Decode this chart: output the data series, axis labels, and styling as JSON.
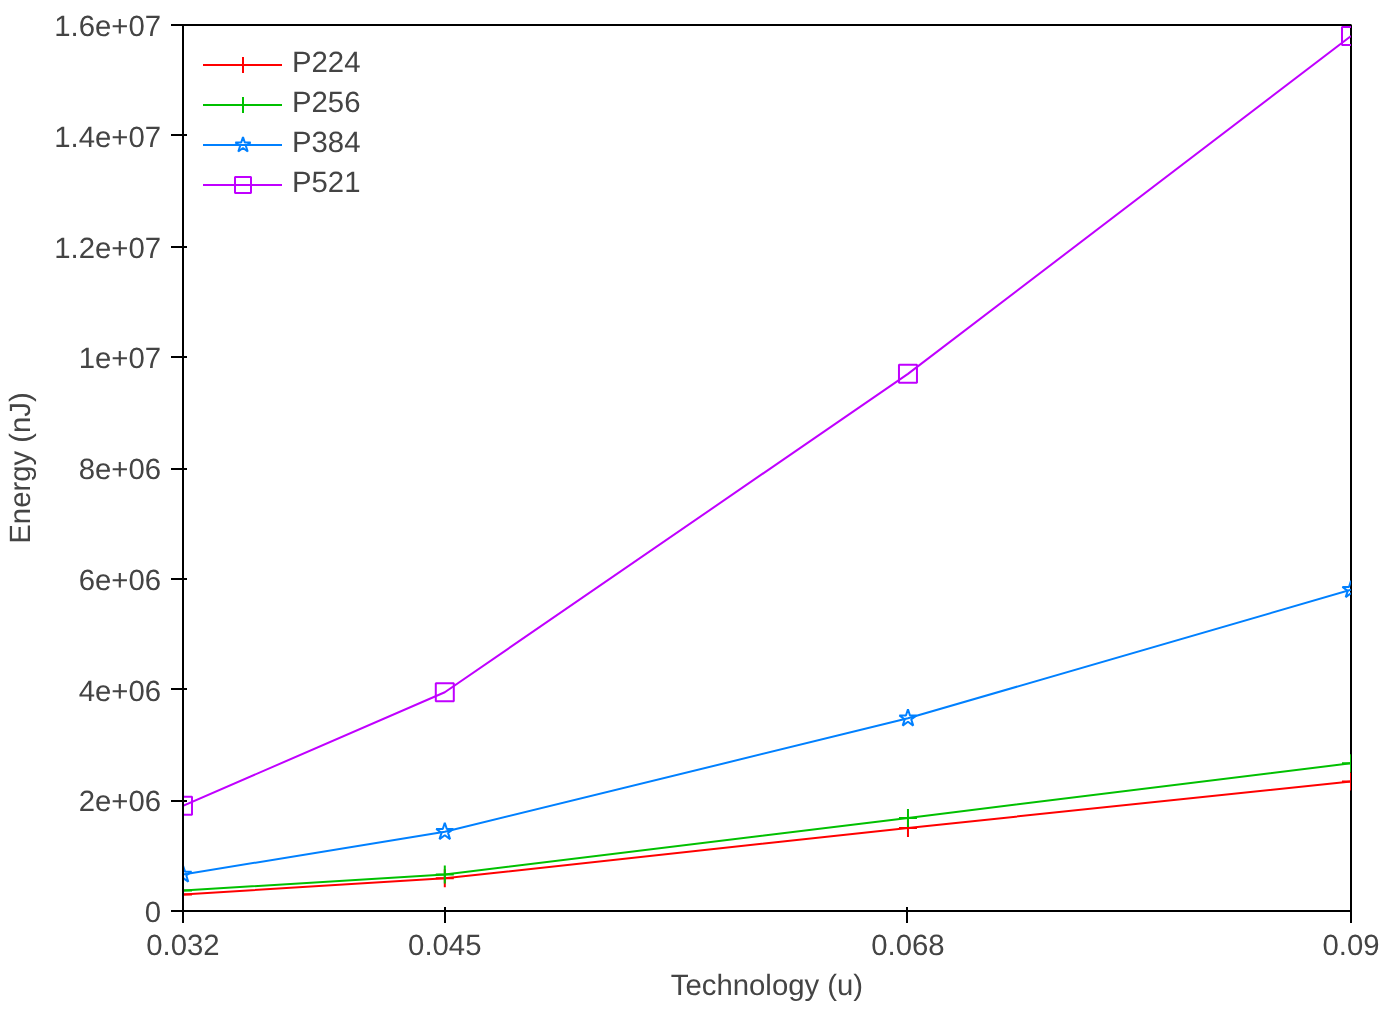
{
  "chart_data": {
    "type": "line",
    "xlabel": "Technology (u)",
    "ylabel": "Energy (nJ)",
    "x": [
      0.032,
      0.045,
      0.068,
      0.09
    ],
    "series": [
      {
        "name": "P224",
        "color": "#ff0000",
        "marker": "cross",
        "values": [
          300000,
          590000,
          1500000,
          2340000
        ]
      },
      {
        "name": "P256",
        "color": "#00c000",
        "marker": "cross",
        "values": [
          370000,
          660000,
          1680000,
          2670000
        ]
      },
      {
        "name": "P384",
        "color": "#0080ff",
        "marker": "star",
        "values": [
          660000,
          1430000,
          3480000,
          5800000
        ]
      },
      {
        "name": "P521",
        "color": "#c000ff",
        "marker": "square",
        "values": [
          1900000,
          3950000,
          9700000,
          15800000
        ]
      }
    ],
    "xlim": [
      0.032,
      0.09
    ],
    "ylim": [
      0,
      16000000
    ],
    "xticks": [
      0.032,
      0.045,
      0.068,
      0.09
    ],
    "yticks": [
      0,
      {
        "value": 2000000,
        "label": "2e+06"
      },
      {
        "value": 4000000,
        "label": "4e+06"
      },
      {
        "value": 6000000,
        "label": "6e+06"
      },
      {
        "value": 8000000,
        "label": "8e+06"
      },
      {
        "value": 10000000,
        "label": "1e+07"
      },
      {
        "value": 12000000,
        "label": "1.2e+07"
      },
      {
        "value": 14000000,
        "label": "1.4e+07"
      },
      {
        "value": 16000000,
        "label": "1.6e+07"
      }
    ],
    "grid": false,
    "legend": "top left",
    "line_style": "solid"
  }
}
